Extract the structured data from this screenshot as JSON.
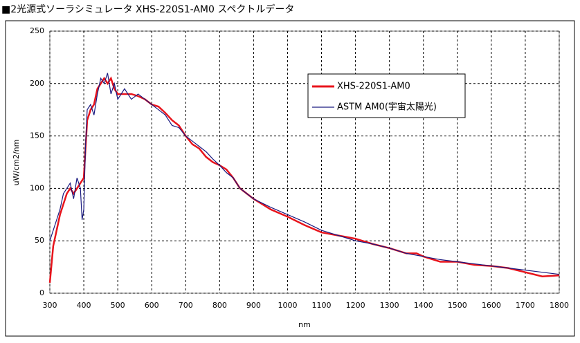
{
  "chart_data": {
    "type": "line",
    "title": "■2光源式ソーラシミュレータ XHS-220S1-AM0 スペクトルデータ",
    "xlabel": "nm",
    "ylabel": "uW/cm2/nm",
    "xlim": [
      300,
      1800
    ],
    "xticks": [
      300,
      400,
      500,
      600,
      700,
      800,
      900,
      1000,
      1100,
      1200,
      1300,
      1400,
      1500,
      1600,
      1700,
      1800
    ],
    "ylim": [
      0,
      250
    ],
    "yticks": [
      0,
      50,
      100,
      150,
      200,
      250
    ],
    "grid": true,
    "legend": "upper right",
    "series": [
      {
        "name": "XHS-220S1-AM0",
        "color": "#e8141c",
        "x": [
          300,
          310,
          320,
          330,
          340,
          350,
          360,
          370,
          380,
          390,
          400,
          410,
          420,
          430,
          440,
          450,
          460,
          470,
          480,
          490,
          500,
          520,
          540,
          560,
          580,
          600,
          620,
          640,
          660,
          680,
          700,
          720,
          740,
          760,
          780,
          800,
          820,
          840,
          860,
          880,
          900,
          950,
          1000,
          1050,
          1100,
          1150,
          1200,
          1250,
          1300,
          1350,
          1380,
          1400,
          1450,
          1500,
          1550,
          1600,
          1650,
          1700,
          1750,
          1800
        ],
        "values": [
          10,
          45,
          60,
          75,
          85,
          95,
          100,
          95,
          100,
          105,
          110,
          165,
          175,
          180,
          195,
          200,
          205,
          200,
          205,
          195,
          190,
          190,
          190,
          188,
          185,
          180,
          178,
          172,
          165,
          160,
          150,
          142,
          138,
          130,
          125,
          122,
          118,
          110,
          100,
          95,
          90,
          80,
          73,
          65,
          58,
          55,
          52,
          47,
          43,
          38,
          38,
          35,
          30,
          30,
          27,
          26,
          24,
          20,
          16,
          17
        ]
      },
      {
        "name": "ASTM AM0(宇宙太陽光)",
        "color": "#1a1a80",
        "x": [
          300,
          310,
          320,
          330,
          340,
          350,
          360,
          370,
          380,
          390,
          395,
          400,
          405,
          410,
          420,
          430,
          440,
          450,
          460,
          470,
          480,
          490,
          500,
          520,
          540,
          560,
          580,
          600,
          620,
          640,
          660,
          680,
          700,
          720,
          740,
          760,
          780,
          800,
          820,
          840,
          860,
          880,
          900,
          950,
          1000,
          1050,
          1100,
          1150,
          1200,
          1250,
          1300,
          1350,
          1400,
          1450,
          1500,
          1550,
          1600,
          1650,
          1700,
          1750,
          1800
        ],
        "values": [
          50,
          60,
          70,
          80,
          95,
          100,
          105,
          90,
          110,
          100,
          70,
          80,
          140,
          175,
          180,
          170,
          190,
          205,
          200,
          210,
          190,
          200,
          185,
          195,
          185,
          190,
          185,
          180,
          175,
          170,
          160,
          158,
          150,
          145,
          140,
          135,
          128,
          122,
          115,
          110,
          100,
          95,
          90,
          82,
          75,
          68,
          60,
          55,
          50,
          47,
          43,
          38,
          35,
          32,
          30,
          28,
          26,
          24,
          22,
          20,
          18
        ]
      }
    ]
  }
}
